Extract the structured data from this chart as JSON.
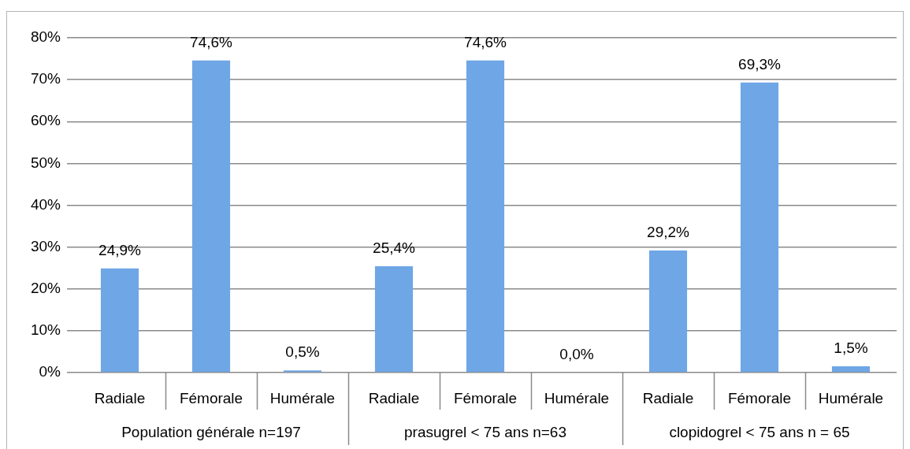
{
  "chart_data": {
    "type": "bar",
    "categories": [
      "Radiale",
      "Fémorale",
      "Humérale",
      "Radiale",
      "Fémorale",
      "Humérale",
      "Radiale",
      "Fémorale",
      "Humérale"
    ],
    "values": [
      24.9,
      74.6,
      0.5,
      25.4,
      74.6,
      0.0,
      29.2,
      69.3,
      1.5
    ],
    "value_labels": [
      "24,9%",
      "74,6%",
      "0,5%",
      "25,4%",
      "74,6%",
      "0,0%",
      "29,2%",
      "69,3%",
      "1,5%"
    ],
    "color": "#6fa6e6",
    "annotations": [
      "Population générale n=197",
      "prasugrel < 75 ans n=63",
      "clopidogrel < 75 ans n = 65"
    ],
    "ylim": [
      0,
      80
    ],
    "yticks": [
      {
        "value": 0,
        "label": "0%"
      },
      {
        "value": 10,
        "label": "10%"
      },
      {
        "value": 20,
        "label": "20%"
      },
      {
        "value": 30,
        "label": "30%"
      },
      {
        "value": 40,
        "label": "40%"
      },
      {
        "value": 50,
        "label": "50%"
      },
      {
        "value": 60,
        "label": "60%"
      },
      {
        "value": 70,
        "label": "70%"
      },
      {
        "value": 80,
        "label": "80%"
      }
    ],
    "grid": "y"
  }
}
